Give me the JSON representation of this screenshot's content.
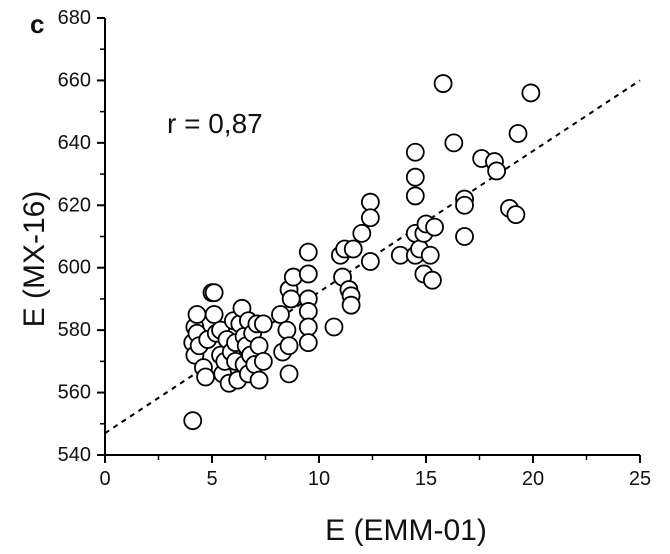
{
  "panel_label": "c",
  "chart_data": {
    "type": "scatter",
    "title": "",
    "xlabel": "E (EMM-01)",
    "ylabel": "E (MX-16)",
    "xlim": [
      0,
      25
    ],
    "ylim": [
      540,
      680
    ],
    "x_ticks": [
      0,
      5,
      10,
      15,
      20,
      25
    ],
    "y_ticks": [
      540,
      560,
      580,
      600,
      620,
      640,
      660,
      680
    ],
    "grid": false,
    "legend": "none",
    "annotation": "r = 0,87",
    "fit_line": {
      "style": "dashed",
      "x": [
        0,
        25
      ],
      "y": [
        547,
        660
      ]
    },
    "marker": {
      "shape": "open-circle",
      "fill": "#ffffff",
      "stroke": "#000000"
    },
    "points": [
      [
        4.1,
        551
      ],
      [
        4.1,
        576
      ],
      [
        4.2,
        572
      ],
      [
        4.2,
        581
      ],
      [
        4.3,
        585
      ],
      [
        4.3,
        579
      ],
      [
        4.4,
        575
      ],
      [
        4.6,
        568
      ],
      [
        4.7,
        565
      ],
      [
        4.8,
        577
      ],
      [
        5.0,
        592
      ],
      [
        5.1,
        592
      ],
      [
        5.1,
        585
      ],
      [
        5.2,
        579
      ],
      [
        5.4,
        580
      ],
      [
        5.4,
        572
      ],
      [
        5.5,
        566
      ],
      [
        5.6,
        570
      ],
      [
        5.7,
        577
      ],
      [
        5.8,
        563
      ],
      [
        5.9,
        573
      ],
      [
        6.0,
        583
      ],
      [
        6.1,
        576
      ],
      [
        6.1,
        570
      ],
      [
        6.2,
        564
      ],
      [
        6.3,
        582
      ],
      [
        6.4,
        587
      ],
      [
        6.5,
        578
      ],
      [
        6.5,
        569
      ],
      [
        6.6,
        575
      ],
      [
        6.7,
        583
      ],
      [
        6.7,
        566
      ],
      [
        6.8,
        572
      ],
      [
        6.9,
        579
      ],
      [
        7.0,
        569
      ],
      [
        7.1,
        582
      ],
      [
        7.2,
        564
      ],
      [
        7.2,
        575
      ],
      [
        7.4,
        570
      ],
      [
        7.4,
        582
      ],
      [
        8.2,
        585
      ],
      [
        8.3,
        573
      ],
      [
        8.5,
        580
      ],
      [
        8.6,
        575
      ],
      [
        8.6,
        566
      ],
      [
        8.6,
        593
      ],
      [
        8.7,
        590
      ],
      [
        8.8,
        597
      ],
      [
        9.5,
        605
      ],
      [
        9.5,
        598
      ],
      [
        9.5,
        590
      ],
      [
        9.5,
        586
      ],
      [
        9.5,
        581
      ],
      [
        9.5,
        576
      ],
      [
        10.7,
        581
      ],
      [
        11.0,
        604
      ],
      [
        11.1,
        597
      ],
      [
        11.2,
        606
      ],
      [
        11.4,
        593
      ],
      [
        11.5,
        591
      ],
      [
        11.5,
        588
      ],
      [
        11.6,
        606
      ],
      [
        12.0,
        611
      ],
      [
        12.4,
        621
      ],
      [
        12.4,
        616
      ],
      [
        12.4,
        602
      ],
      [
        13.8,
        604
      ],
      [
        14.5,
        637
      ],
      [
        14.5,
        629
      ],
      [
        14.5,
        623
      ],
      [
        14.5,
        611
      ],
      [
        14.5,
        604
      ],
      [
        14.7,
        606
      ],
      [
        14.9,
        611
      ],
      [
        14.9,
        598
      ],
      [
        15.0,
        614
      ],
      [
        15.2,
        604
      ],
      [
        15.3,
        596
      ],
      [
        15.4,
        613
      ],
      [
        15.8,
        659
      ],
      [
        16.3,
        640
      ],
      [
        16.8,
        622
      ],
      [
        16.8,
        620
      ],
      [
        16.8,
        610
      ],
      [
        17.6,
        635
      ],
      [
        18.2,
        634
      ],
      [
        18.3,
        631
      ],
      [
        18.9,
        619
      ],
      [
        19.2,
        617
      ],
      [
        19.3,
        643
      ],
      [
        19.9,
        656
      ]
    ]
  }
}
